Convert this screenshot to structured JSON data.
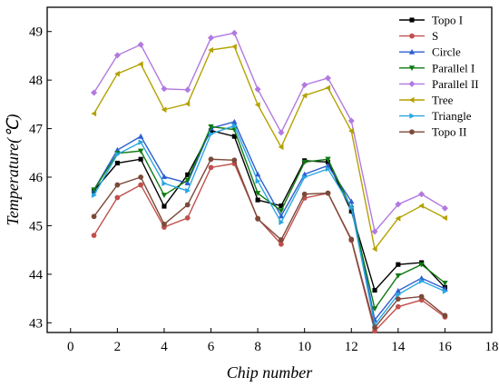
{
  "chart_data": {
    "type": "line",
    "title": "",
    "xlabel": "Chip number",
    "ylabel": "Temperature(℃)",
    "xlim": [
      -1,
      18
    ],
    "ylim": [
      42.8,
      49.5
    ],
    "x_ticks": [
      0,
      2,
      4,
      6,
      8,
      10,
      12,
      14,
      16,
      18
    ],
    "y_ticks": [
      43,
      44,
      45,
      46,
      47,
      48,
      49
    ],
    "grid": false,
    "legend_position": "top-right",
    "x": [
      1,
      2,
      3,
      4,
      5,
      6,
      7,
      8,
      9,
      10,
      11,
      12,
      13,
      14,
      15,
      16
    ],
    "series": [
      {
        "name": "Topo I",
        "color": "#000000",
        "marker": "square",
        "values": [
          45.72,
          46.29,
          46.37,
          45.4,
          46.05,
          46.96,
          46.84,
          45.53,
          45.41,
          46.34,
          46.31,
          45.3,
          43.67,
          44.2,
          44.24,
          43.73
        ]
      },
      {
        "name": "S",
        "color": "#c0504d",
        "marker": "circle",
        "values": [
          44.8,
          45.58,
          45.84,
          44.97,
          45.16,
          46.2,
          46.28,
          45.15,
          44.62,
          45.57,
          45.67,
          44.7,
          42.83,
          43.33,
          43.47,
          43.12
        ]
      },
      {
        "name": "Circle",
        "color": "#2e5fd0",
        "marker": "triangle-up",
        "values": [
          45.74,
          46.56,
          46.84,
          46.01,
          45.88,
          47.01,
          47.14,
          46.06,
          45.2,
          46.06,
          46.24,
          45.5,
          43.06,
          43.66,
          43.92,
          43.7
        ]
      },
      {
        "name": "Parallel I",
        "color": "#0f7a12",
        "marker": "triangle-down",
        "values": [
          45.74,
          46.49,
          46.54,
          45.63,
          45.94,
          47.04,
          46.98,
          45.67,
          45.31,
          46.31,
          46.37,
          45.36,
          43.29,
          43.97,
          44.2,
          43.82
        ]
      },
      {
        "name": "Parallel II",
        "color": "#b279e0",
        "marker": "diamond",
        "values": [
          47.74,
          48.51,
          48.73,
          47.82,
          47.8,
          48.87,
          48.97,
          47.81,
          46.92,
          47.9,
          48.04,
          47.16,
          44.88,
          45.44,
          45.65,
          45.36
        ]
      },
      {
        "name": "Tree",
        "color": "#b5a100",
        "marker": "triangle-left",
        "values": [
          47.31,
          48.13,
          48.33,
          47.39,
          47.51,
          48.62,
          48.69,
          47.49,
          46.62,
          47.68,
          47.84,
          46.95,
          44.52,
          45.15,
          45.41,
          45.16
        ]
      },
      {
        "name": "Triangle",
        "color": "#2aa6e0",
        "marker": "triangle-right",
        "values": [
          45.63,
          46.47,
          46.72,
          45.87,
          45.72,
          46.89,
          47.06,
          45.92,
          45.07,
          46.0,
          46.17,
          45.38,
          42.96,
          43.58,
          43.86,
          43.65
        ]
      },
      {
        "name": "Topo II",
        "color": "#7b4a3a",
        "marker": "circle",
        "values": [
          45.19,
          45.84,
          46.0,
          45.03,
          45.43,
          46.37,
          46.35,
          45.14,
          44.71,
          45.65,
          45.67,
          44.72,
          42.9,
          43.49,
          43.54,
          43.15
        ]
      }
    ]
  }
}
